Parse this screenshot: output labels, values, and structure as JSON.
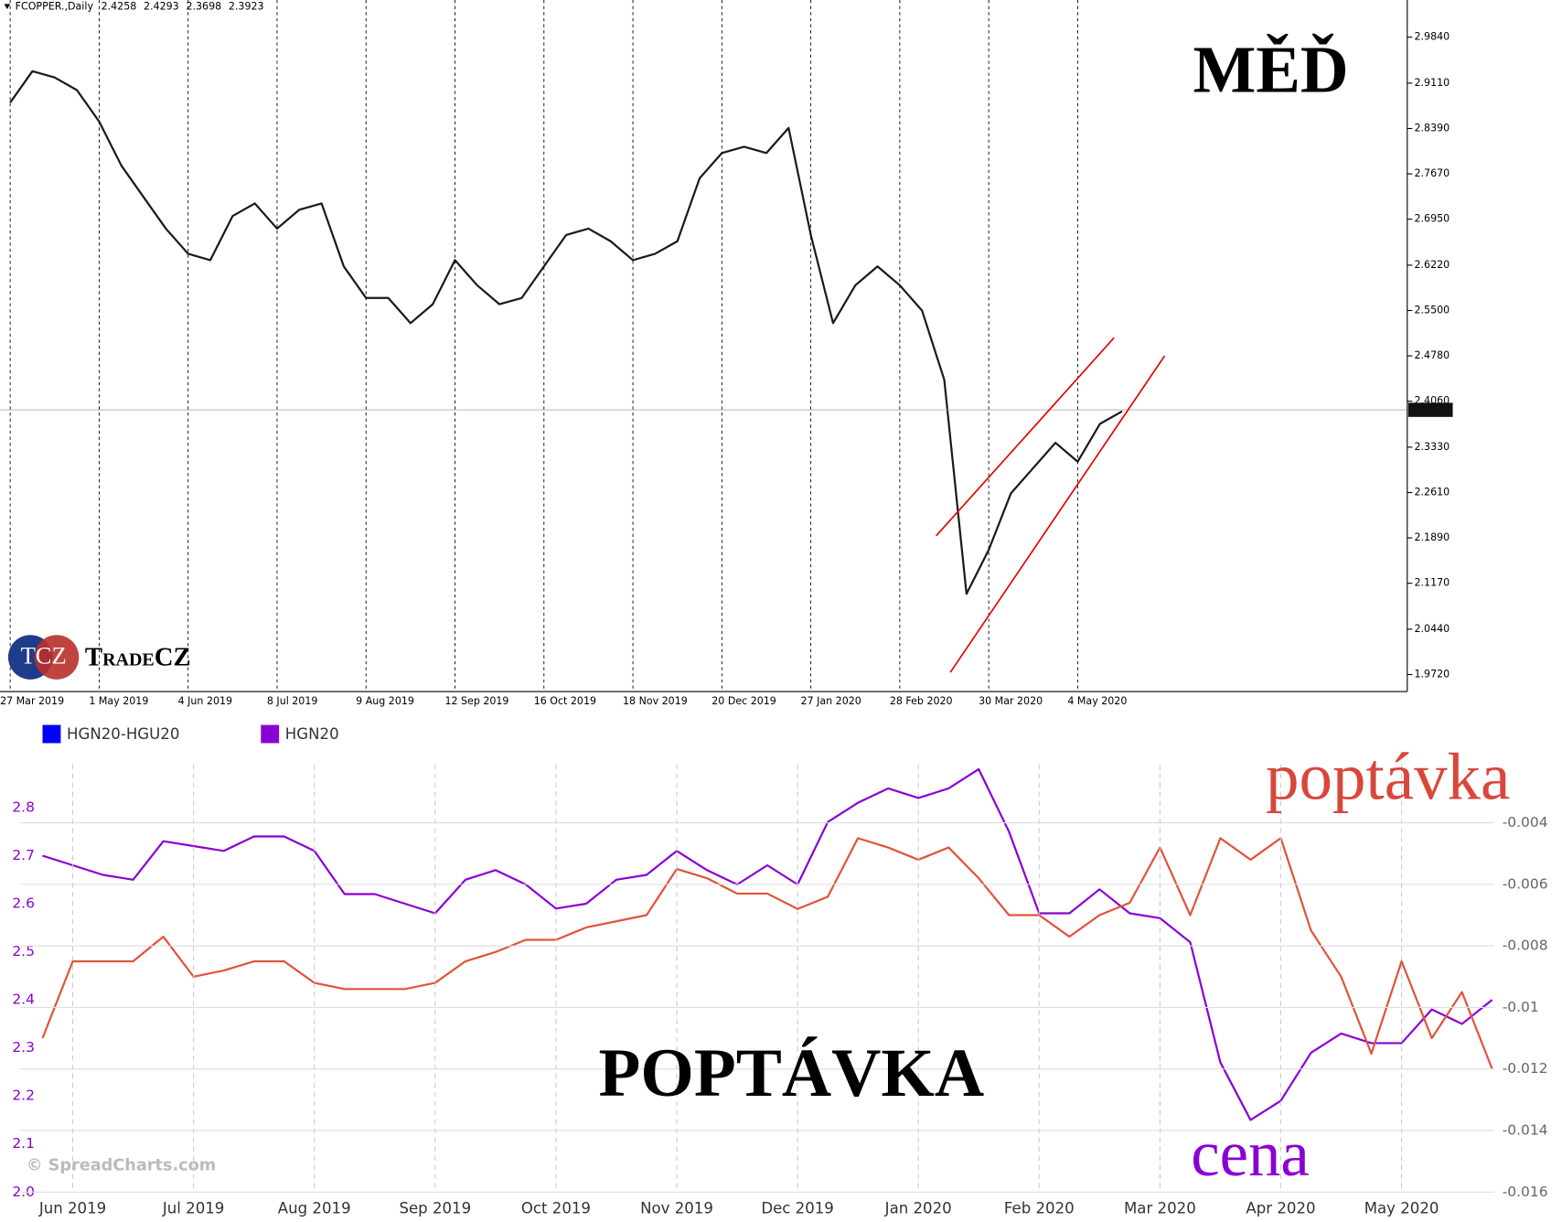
{
  "chart_data": [
    {
      "type": "line",
      "header": "FCOPPER.,Daily",
      "header_values": [
        2.4258,
        2.4293,
        2.3698,
        2.3923
      ],
      "last_price": 2.3923,
      "title": "MĚĎ",
      "logo": {
        "badge": "TCZ",
        "name": "TradeCZ"
      },
      "categories": [
        "27 Mar 2019",
        null,
        null,
        null,
        "1 May 2019",
        null,
        null,
        null,
        "4 Jun 2019",
        null,
        null,
        null,
        "8 Jul 2019",
        null,
        null,
        null,
        "9 Aug 2019",
        null,
        null,
        null,
        "12 Sep 2019",
        null,
        null,
        null,
        "16 Oct 2019",
        null,
        null,
        null,
        "18 Nov 2019",
        null,
        null,
        null,
        "20 Dec 2019",
        null,
        null,
        null,
        "27 Jan 2020",
        null,
        null,
        null,
        "28 Feb 2020",
        null,
        null,
        null,
        "30 Mar 2020",
        null,
        null,
        null,
        "4 May 2020",
        null,
        null
      ],
      "series": [
        {
          "name": "FCOPPER.",
          "color": "#1a1a1a",
          "values": [
            2.88,
            2.93,
            2.92,
            2.9,
            2.85,
            2.78,
            2.73,
            2.68,
            2.64,
            2.63,
            2.7,
            2.72,
            2.68,
            2.71,
            2.72,
            2.62,
            2.57,
            2.57,
            2.53,
            2.56,
            2.63,
            2.59,
            2.56,
            2.57,
            2.62,
            2.67,
            2.68,
            2.66,
            2.63,
            2.64,
            2.66,
            2.76,
            2.8,
            2.81,
            2.8,
            2.84,
            2.67,
            2.53,
            2.59,
            2.62,
            2.59,
            2.55,
            2.44,
            2.1,
            2.17,
            2.26,
            2.3,
            2.34,
            2.31,
            2.37,
            2.39
          ]
        }
      ],
      "ylim": [
        1.945,
        3.043
      ],
      "yticks": [
        {
          "value": 2.984,
          "label": "2.9840"
        },
        {
          "value": 2.911,
          "label": "2.9110"
        },
        {
          "value": 2.839,
          "label": "2.8390"
        },
        {
          "value": 2.767,
          "label": "2.7670"
        },
        {
          "value": 2.695,
          "label": "2.6950"
        },
        {
          "value": 2.622,
          "label": "2.6220"
        },
        {
          "value": 2.55,
          "label": "2.5500"
        },
        {
          "value": 2.478,
          "label": "2.4780"
        },
        {
          "value": 2.406,
          "label": "2.4060"
        },
        {
          "value": 2.333,
          "label": "2.3330"
        },
        {
          "value": 2.261,
          "label": "2.2610"
        },
        {
          "value": 2.189,
          "label": "2.1890"
        },
        {
          "value": 2.117,
          "label": "2.1170"
        },
        {
          "value": 2.044,
          "label": "2.0440"
        },
        {
          "value": 1.972,
          "label": "1.9720"
        }
      ]
    },
    {
      "type": "line",
      "watermark": "© SpreadCharts.com",
      "annotations": [
        "POPTÁVKA",
        "poptávka",
        "cena"
      ],
      "categories": [
        null,
        "Jun 2019",
        null,
        null,
        null,
        "Jul 2019",
        null,
        null,
        null,
        "Aug 2019",
        null,
        null,
        null,
        "Sep 2019",
        null,
        null,
        null,
        "Oct 2019",
        null,
        null,
        null,
        "Nov 2019",
        null,
        null,
        null,
        "Dec 2019",
        null,
        null,
        null,
        "Jan 2020",
        null,
        null,
        null,
        "Feb 2020",
        null,
        null,
        null,
        "Mar 2020",
        null,
        null,
        null,
        "Apr 2020",
        null,
        null,
        null,
        "May 2020",
        null,
        null,
        null
      ],
      "series": [
        {
          "name": "HGN20-HGU20",
          "color": "#e0533a",
          "legend_color": "#0000ff",
          "axis": "y2",
          "values": [
            -0.011,
            -0.0085,
            -0.0085,
            -0.0085,
            -0.0077,
            -0.009,
            -0.0088,
            -0.0085,
            -0.0085,
            -0.0092,
            -0.0094,
            -0.0094,
            -0.0094,
            -0.0092,
            -0.0085,
            -0.0082,
            -0.0078,
            -0.0078,
            -0.0074,
            -0.0072,
            -0.007,
            -0.0055,
            -0.0058,
            -0.0063,
            -0.0063,
            -0.0068,
            -0.0064,
            -0.0045,
            -0.0048,
            -0.0052,
            -0.0048,
            -0.0058,
            -0.007,
            -0.007,
            -0.0077,
            -0.007,
            -0.0066,
            -0.0048,
            -0.007,
            -0.0045,
            -0.0052,
            -0.0045,
            -0.0075,
            -0.009,
            -0.0115,
            -0.0085,
            -0.011,
            -0.0095,
            -0.012
          ]
        },
        {
          "name": "HGN20",
          "color": "#8a00d4",
          "legend_color": "#8a00d4",
          "values": [
            2.7,
            2.68,
            2.66,
            2.65,
            2.73,
            2.72,
            2.71,
            2.74,
            2.74,
            2.71,
            2.62,
            2.62,
            2.6,
            2.58,
            2.65,
            2.67,
            2.64,
            2.59,
            2.6,
            2.65,
            2.66,
            2.71,
            2.67,
            2.64,
            2.68,
            2.64,
            2.77,
            2.81,
            2.84,
            2.82,
            2.84,
            2.88,
            2.75,
            2.58,
            2.58,
            2.63,
            2.58,
            2.57,
            2.52,
            2.27,
            2.15,
            2.19,
            2.29,
            2.33,
            2.31,
            2.31,
            2.38,
            2.35,
            2.4
          ]
        }
      ],
      "ylim": [
        2.0,
        2.89
      ],
      "yticks": [
        {
          "value": 2.0,
          "label": "2.0"
        },
        2.1,
        2.2,
        2.3,
        2.4,
        2.5,
        2.6,
        2.7,
        2.8
      ],
      "y2lim": [
        -0.016,
        -0.0021
      ],
      "y2ticks": [
        -0.016,
        -0.014,
        -0.012,
        -0.01,
        -0.008,
        -0.006,
        -0.004
      ],
      "grid": true
    }
  ]
}
